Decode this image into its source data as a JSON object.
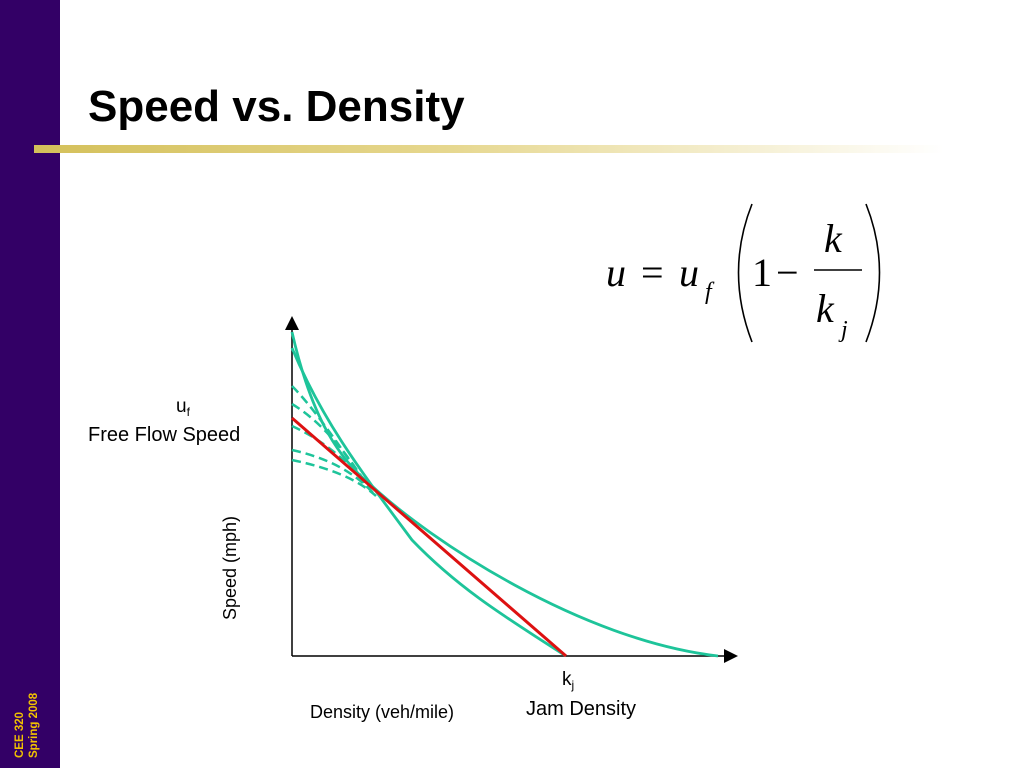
{
  "slide": {
    "title": "Speed vs. Density",
    "footer_lines": [
      "CEE 320",
      "Spring 2008"
    ]
  },
  "equation": {
    "lhs": "u",
    "equals": "=",
    "uf_base": "u",
    "uf_sub": "f",
    "one": "1",
    "minus": "−",
    "numerator": "k",
    "denom_base": "k",
    "denom_sub": "j"
  },
  "labels": {
    "uf_base": "u",
    "uf_sub": "f",
    "free_flow": "Free Flow Speed",
    "kj_base": "k",
    "kj_sub": "j",
    "jam_density": "Jam Density",
    "x_axis": "Density (veh/mile)",
    "y_axis": "Speed (mph)"
  },
  "colors": {
    "sidebar": "#330066",
    "footer_text": "#f2c200",
    "linear_model": "#dd1111",
    "curves": "#1ec49a"
  }
}
